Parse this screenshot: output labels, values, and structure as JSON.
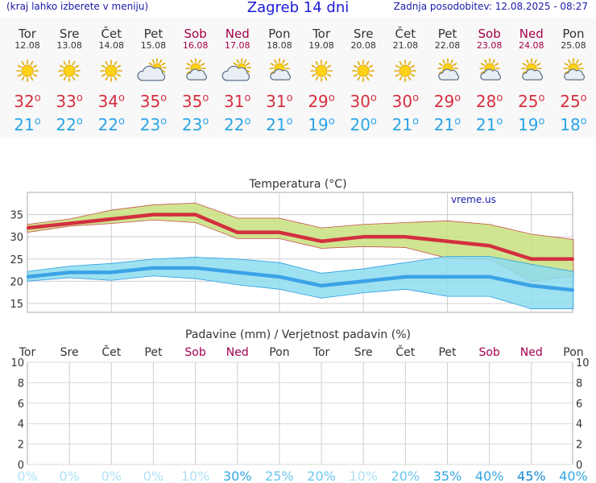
{
  "header": {
    "left_note": "(kraj lahko izberete v meniju)",
    "title": "Zagreb 14 dni",
    "updated": "Zadnja posodobitev: 12.08.2025 - 08:27"
  },
  "days": [
    {
      "name": "Tor",
      "date": "12.08",
      "weekend": false,
      "icon": "sun-icon",
      "tmax": "32",
      "tmin": "21"
    },
    {
      "name": "Sre",
      "date": "13.08",
      "weekend": false,
      "icon": "sun-icon",
      "tmax": "33",
      "tmin": "22"
    },
    {
      "name": "Čet",
      "date": "14.08",
      "weekend": false,
      "icon": "sun-icon",
      "tmax": "34",
      "tmin": "22"
    },
    {
      "name": "Pet",
      "date": "15.08",
      "weekend": false,
      "icon": "cloud-sun-icon",
      "tmax": "35",
      "tmin": "23"
    },
    {
      "name": "Sob",
      "date": "16.08",
      "weekend": true,
      "icon": "partly-cloudy-icon",
      "tmax": "35",
      "tmin": "23"
    },
    {
      "name": "Ned",
      "date": "17.08",
      "weekend": true,
      "icon": "cloud-sun-icon",
      "tmax": "31",
      "tmin": "22"
    },
    {
      "name": "Pon",
      "date": "18.08",
      "weekend": false,
      "icon": "partly-cloudy-icon",
      "tmax": "31",
      "tmin": "21"
    },
    {
      "name": "Tor",
      "date": "19.08",
      "weekend": false,
      "icon": "sun-icon",
      "tmax": "29",
      "tmin": "19"
    },
    {
      "name": "Sre",
      "date": "20.08",
      "weekend": false,
      "icon": "sun-icon",
      "tmax": "30",
      "tmin": "20"
    },
    {
      "name": "Čet",
      "date": "21.08",
      "weekend": false,
      "icon": "sun-icon",
      "tmax": "30",
      "tmin": "21"
    },
    {
      "name": "Pet",
      "date": "22.08",
      "weekend": false,
      "icon": "partly-cloudy-icon",
      "tmax": "29",
      "tmin": "21"
    },
    {
      "name": "Sob",
      "date": "23.08",
      "weekend": true,
      "icon": "partly-cloudy-icon",
      "tmax": "28",
      "tmin": "21"
    },
    {
      "name": "Ned",
      "date": "24.08",
      "weekend": true,
      "icon": "partly-cloudy-icon",
      "tmax": "25",
      "tmin": "19"
    },
    {
      "name": "Pon",
      "date": "25.08",
      "weekend": false,
      "icon": "partly-cloudy-icon",
      "tmax": "25",
      "tmin": "18"
    }
  ],
  "chart_data": [
    {
      "type": "line",
      "title": "Temperatura (°C)",
      "watermark": "vreme.us",
      "ylim": [
        13,
        40
      ],
      "yticks": [
        15,
        20,
        25,
        30,
        35
      ],
      "grid": true,
      "series": [
        {
          "role": "max",
          "color": "#d32f3f",
          "values": [
            32,
            33,
            34,
            35,
            35,
            31,
            31,
            29,
            30,
            30,
            29,
            28,
            25,
            25
          ]
        },
        {
          "role": "max_band_high",
          "color": "#c8e17e",
          "values": [
            32.8,
            34,
            36,
            37.2,
            37.6,
            34.2,
            34.2,
            32,
            32.8,
            33.2,
            33.6,
            32.8,
            30.6,
            29.4
          ]
        },
        {
          "role": "max_band_low",
          "color": "#c8e17e",
          "values": [
            31,
            32.4,
            33,
            33.8,
            33.2,
            29.6,
            29.6,
            27.4,
            27.8,
            27.6,
            25.2,
            25,
            20,
            21.2
          ]
        },
        {
          "role": "min",
          "color": "#3ba3e6",
          "values": [
            21,
            22,
            22,
            23,
            23,
            22,
            21,
            19,
            20,
            21,
            21,
            21,
            19,
            18
          ]
        },
        {
          "role": "min_band_high",
          "color": "#8ddcee",
          "values": [
            22.2,
            23.4,
            24,
            25,
            25.4,
            25,
            24.2,
            21.8,
            22.8,
            24.2,
            25.6,
            25.6,
            23.8,
            22.2
          ]
        },
        {
          "role": "min_band_low",
          "color": "#8ddcee",
          "values": [
            20,
            20.8,
            20.2,
            21.2,
            20.6,
            19.2,
            18.2,
            16.2,
            17.4,
            18.2,
            16.6,
            16.6,
            13.8,
            13.8
          ]
        }
      ]
    },
    {
      "type": "bar",
      "title": "Padavine (mm) / Verjetnost padavin (%)",
      "categories": [
        "Tor",
        "Sre",
        "Čet",
        "Pet",
        "Sob",
        "Ned",
        "Pon",
        "Tor",
        "Sre",
        "Čet",
        "Pet",
        "Sob",
        "Ned",
        "Pon"
      ],
      "ylim": [
        0,
        10
      ],
      "yticks": [
        0,
        2,
        4,
        6,
        8,
        10
      ],
      "precip_mm": [
        0,
        0,
        0,
        0,
        0,
        0,
        0,
        0,
        0,
        0,
        0,
        0,
        0,
        0
      ],
      "probability_labels": [
        "0%",
        "0%",
        "0%",
        "0%",
        "10%",
        "30%",
        "25%",
        "20%",
        "10%",
        "20%",
        "35%",
        "40%",
        "45%",
        "40%"
      ],
      "probability": [
        0,
        0,
        0,
        0,
        10,
        30,
        25,
        20,
        10,
        20,
        35,
        40,
        45,
        40
      ],
      "grid": true
    }
  ]
}
